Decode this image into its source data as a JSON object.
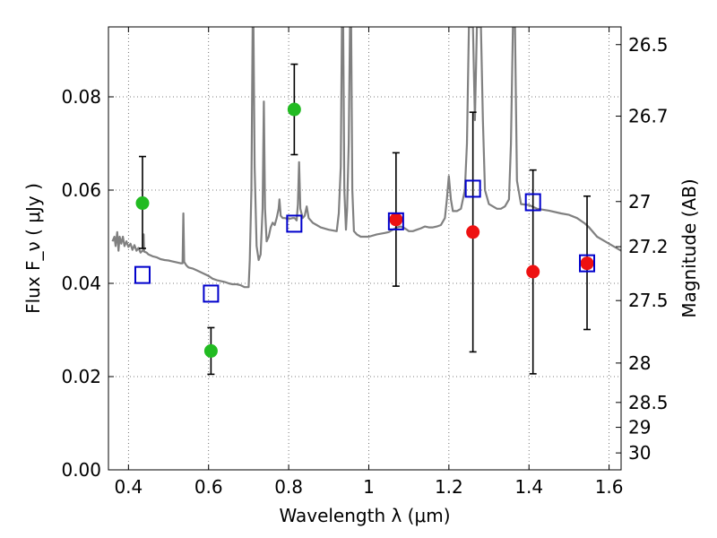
{
  "chart_data": {
    "type": "scatter",
    "xlabel": "Wavelength  λ (μm)",
    "ylabel": "Flux  F_ν  ( μJy )",
    "y2label": "Magnitude (AB)",
    "xlim": [
      0.35,
      1.63
    ],
    "ylim": [
      0.0,
      0.095
    ],
    "grid": true,
    "x_ticks": [
      {
        "value": 0.4,
        "label": "0.4"
      },
      {
        "value": 0.6,
        "label": "0.6"
      },
      {
        "value": 0.8,
        "label": "0.8"
      },
      {
        "value": 1.0,
        "label": "1"
      },
      {
        "value": 1.2,
        "label": "1.2"
      },
      {
        "value": 1.4,
        "label": "1.4"
      },
      {
        "value": 1.6,
        "label": "1.6"
      }
    ],
    "y_ticks": [
      {
        "value": 0.0,
        "label": "0.00"
      },
      {
        "value": 0.02,
        "label": "0.02"
      },
      {
        "value": 0.04,
        "label": "0.04"
      },
      {
        "value": 0.06,
        "label": "0.06"
      },
      {
        "value": 0.08,
        "label": "0.08"
      }
    ],
    "y2_ticks": [
      {
        "value": 26.5,
        "label": "26.5"
      },
      {
        "value": 26.7,
        "label": "26.7"
      },
      {
        "value": 27.0,
        "label": "27"
      },
      {
        "value": 27.2,
        "label": "27.2"
      },
      {
        "value": 27.5,
        "label": "27.5"
      },
      {
        "value": 28.0,
        "label": "28"
      },
      {
        "value": 28.5,
        "label": "28.5"
      },
      {
        "value": 29.0,
        "label": "29"
      },
      {
        "value": 30.0,
        "label": "30"
      }
    ],
    "series": [
      {
        "marker": "circle",
        "color": "#22bb22",
        "points": [
          {
            "x": 0.435,
            "y": 0.0572,
            "ylo": 0.0475,
            "yhi": 0.0672
          },
          {
            "x": 0.606,
            "y": 0.0255,
            "ylo": 0.0205,
            "yhi": 0.0305
          },
          {
            "x": 0.814,
            "y": 0.0773,
            "ylo": 0.0676,
            "yhi": 0.087
          }
        ]
      },
      {
        "marker": "circle",
        "color": "#ee1111",
        "points": [
          {
            "x": 1.068,
            "y": 0.0537,
            "ylo": 0.0394,
            "yhi": 0.068
          },
          {
            "x": 1.26,
            "y": 0.051,
            "ylo": 0.0253,
            "yhi": 0.0767
          },
          {
            "x": 1.41,
            "y": 0.0425,
            "ylo": 0.0206,
            "yhi": 0.0643
          },
          {
            "x": 1.545,
            "y": 0.0443,
            "ylo": 0.0301,
            "yhi": 0.0587
          }
        ]
      },
      {
        "marker": "square-open",
        "color": "#0000cc",
        "points": [
          {
            "x": 0.435,
            "y": 0.0418
          },
          {
            "x": 0.606,
            "y": 0.0378
          },
          {
            "x": 0.814,
            "y": 0.0528
          },
          {
            "x": 1.068,
            "y": 0.0533
          },
          {
            "x": 1.26,
            "y": 0.0603
          },
          {
            "x": 1.41,
            "y": 0.0574
          },
          {
            "x": 1.545,
            "y": 0.0443
          }
        ]
      }
    ],
    "spectrum": {
      "color": "#808080",
      "points": [
        [
          0.36,
          0.049
        ],
        [
          0.365,
          0.05
        ],
        [
          0.368,
          0.048
        ],
        [
          0.372,
          0.051
        ],
        [
          0.375,
          0.047
        ],
        [
          0.378,
          0.05
        ],
        [
          0.382,
          0.0485
        ],
        [
          0.386,
          0.05
        ],
        [
          0.39,
          0.048
        ],
        [
          0.395,
          0.049
        ],
        [
          0.4,
          0.0478
        ],
        [
          0.405,
          0.0485
        ],
        [
          0.41,
          0.0472
        ],
        [
          0.415,
          0.0482
        ],
        [
          0.42,
          0.047
        ],
        [
          0.425,
          0.0476
        ],
        [
          0.43,
          0.0466
        ],
        [
          0.435,
          0.047
        ],
        [
          0.437,
          0.047
        ],
        [
          0.438,
          0.0505
        ],
        [
          0.439,
          0.0468
        ],
        [
          0.445,
          0.0466
        ],
        [
          0.45,
          0.0462
        ],
        [
          0.46,
          0.0458
        ],
        [
          0.47,
          0.0456
        ],
        [
          0.48,
          0.0452
        ],
        [
          0.49,
          0.045
        ],
        [
          0.5,
          0.0449
        ],
        [
          0.51,
          0.0447
        ],
        [
          0.52,
          0.0445
        ],
        [
          0.53,
          0.0443
        ],
        [
          0.535,
          0.0443
        ],
        [
          0.537,
          0.055
        ],
        [
          0.539,
          0.0446
        ],
        [
          0.545,
          0.0438
        ],
        [
          0.55,
          0.0434
        ],
        [
          0.56,
          0.0432
        ],
        [
          0.57,
          0.0428
        ],
        [
          0.58,
          0.0424
        ],
        [
          0.59,
          0.042
        ],
        [
          0.6,
          0.0416
        ],
        [
          0.61,
          0.041
        ],
        [
          0.62,
          0.0407
        ],
        [
          0.63,
          0.0405
        ],
        [
          0.64,
          0.0403
        ],
        [
          0.65,
          0.04
        ],
        [
          0.66,
          0.0398
        ],
        [
          0.67,
          0.0398
        ],
        [
          0.68,
          0.0396
        ],
        [
          0.69,
          0.0392
        ],
        [
          0.7,
          0.0392
        ],
        [
          0.703,
          0.045
        ],
        [
          0.707,
          0.06
        ],
        [
          0.71,
          0.095
        ],
        [
          0.712,
          0.095
        ],
        [
          0.715,
          0.065
        ],
        [
          0.72,
          0.048
        ],
        [
          0.725,
          0.045
        ],
        [
          0.73,
          0.0462
        ],
        [
          0.735,
          0.056
        ],
        [
          0.738,
          0.079
        ],
        [
          0.741,
          0.056
        ],
        [
          0.745,
          0.049
        ],
        [
          0.75,
          0.05
        ],
        [
          0.755,
          0.052
        ],
        [
          0.76,
          0.053
        ],
        [
          0.765,
          0.0525
        ],
        [
          0.77,
          0.054
        ],
        [
          0.775,
          0.056
        ],
        [
          0.777,
          0.058
        ],
        [
          0.78,
          0.0545
        ],
        [
          0.785,
          0.054
        ],
        [
          0.79,
          0.054
        ],
        [
          0.8,
          0.0538
        ],
        [
          0.81,
          0.054
        ],
        [
          0.815,
          0.054
        ],
        [
          0.82,
          0.0535
        ],
        [
          0.823,
          0.057
        ],
        [
          0.826,
          0.066
        ],
        [
          0.829,
          0.056
        ],
        [
          0.835,
          0.054
        ],
        [
          0.84,
          0.0545
        ],
        [
          0.845,
          0.0565
        ],
        [
          0.85,
          0.054
        ],
        [
          0.86,
          0.053
        ],
        [
          0.87,
          0.0525
        ],
        [
          0.88,
          0.052
        ],
        [
          0.9,
          0.0515
        ],
        [
          0.92,
          0.0512
        ],
        [
          0.925,
          0.055
        ],
        [
          0.93,
          0.065
        ],
        [
          0.933,
          0.095
        ],
        [
          0.936,
          0.095
        ],
        [
          0.939,
          0.06
        ],
        [
          0.943,
          0.0515
        ],
        [
          0.946,
          0.056
        ],
        [
          0.95,
          0.07
        ],
        [
          0.953,
          0.095
        ],
        [
          0.956,
          0.095
        ],
        [
          0.959,
          0.06
        ],
        [
          0.963,
          0.0512
        ],
        [
          0.97,
          0.0505
        ],
        [
          0.98,
          0.05
        ],
        [
          0.99,
          0.05
        ],
        [
          1.0,
          0.05
        ],
        [
          1.02,
          0.0505
        ],
        [
          1.04,
          0.0508
        ],
        [
          1.05,
          0.051
        ],
        [
          1.06,
          0.0515
        ],
        [
          1.07,
          0.052
        ],
        [
          1.08,
          0.0522
        ],
        [
          1.09,
          0.0518
        ],
        [
          1.1,
          0.0512
        ],
        [
          1.11,
          0.0512
        ],
        [
          1.12,
          0.0515
        ],
        [
          1.13,
          0.0518
        ],
        [
          1.14,
          0.0522
        ],
        [
          1.15,
          0.052
        ],
        [
          1.16,
          0.052
        ],
        [
          1.17,
          0.0522
        ],
        [
          1.18,
          0.0525
        ],
        [
          1.19,
          0.054
        ],
        [
          1.195,
          0.058
        ],
        [
          1.2,
          0.063
        ],
        [
          1.205,
          0.058
        ],
        [
          1.21,
          0.0555
        ],
        [
          1.22,
          0.0555
        ],
        [
          1.23,
          0.056
        ],
        [
          1.24,
          0.06
        ],
        [
          1.245,
          0.07
        ],
        [
          1.25,
          0.095
        ],
        [
          1.26,
          0.095
        ],
        [
          1.265,
          0.075
        ],
        [
          1.27,
          0.095
        ],
        [
          1.28,
          0.095
        ],
        [
          1.285,
          0.075
        ],
        [
          1.29,
          0.06
        ],
        [
          1.3,
          0.057
        ],
        [
          1.31,
          0.0565
        ],
        [
          1.32,
          0.056
        ],
        [
          1.33,
          0.056
        ],
        [
          1.34,
          0.0565
        ],
        [
          1.35,
          0.058
        ],
        [
          1.355,
          0.07
        ],
        [
          1.36,
          0.095
        ],
        [
          1.365,
          0.095
        ],
        [
          1.37,
          0.062
        ],
        [
          1.38,
          0.057
        ],
        [
          1.4,
          0.0568
        ],
        [
          1.42,
          0.056
        ],
        [
          1.45,
          0.0556
        ],
        [
          1.48,
          0.055
        ],
        [
          1.5,
          0.0547
        ],
        [
          1.52,
          0.054
        ],
        [
          1.54,
          0.0528
        ],
        [
          1.55,
          0.052
        ],
        [
          1.57,
          0.05
        ],
        [
          1.59,
          0.049
        ],
        [
          1.61,
          0.048
        ],
        [
          1.63,
          0.047
        ]
      ]
    }
  }
}
